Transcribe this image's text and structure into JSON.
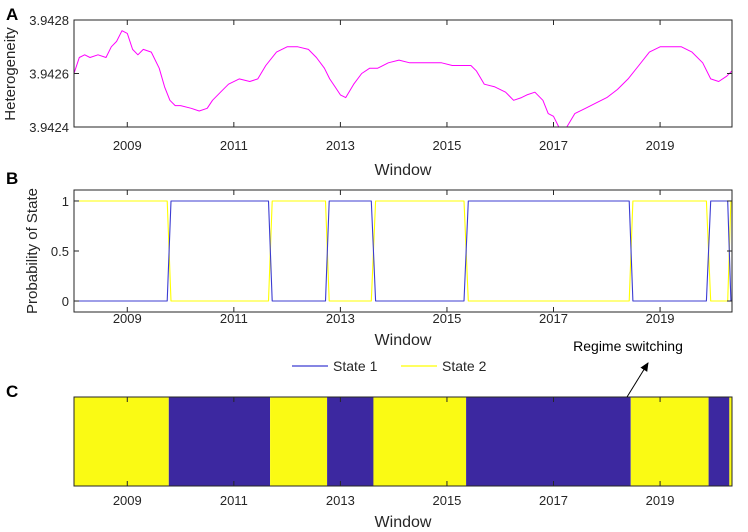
{
  "chart_data": [
    {
      "panel": "A",
      "type": "line",
      "xlabel": "Window",
      "ylabel": "Heterogeneity",
      "xlim": [
        2008,
        2020.35
      ],
      "ylim": [
        3.9424,
        3.9428
      ],
      "xticks": [
        2009,
        2011,
        2013,
        2015,
        2017,
        2019
      ],
      "xtick_labels": [
        "2009",
        "2011",
        "2013",
        "2015",
        "2017",
        "2019"
      ],
      "yticks": [
        3.9424,
        3.9426,
        3.9428
      ],
      "ytick_labels": [
        "3.9424",
        "3.9426",
        "3.9428"
      ],
      "grid": false,
      "series": [
        {
          "color": "#ff00ff",
          "x": [
            2008.0,
            2008.1,
            2008.2,
            2008.3,
            2008.45,
            2008.6,
            2008.7,
            2008.8,
            2008.9,
            2009.0,
            2009.1,
            2009.2,
            2009.3,
            2009.45,
            2009.6,
            2009.7,
            2009.8,
            2009.9,
            2010.0,
            2010.2,
            2010.35,
            2010.5,
            2010.6,
            2010.75,
            2010.9,
            2011.1,
            2011.3,
            2011.45,
            2011.6,
            2011.8,
            2012.0,
            2012.2,
            2012.4,
            2012.55,
            2012.7,
            2012.8,
            2012.9,
            2013.0,
            2013.1,
            2013.25,
            2013.4,
            2013.55,
            2013.7,
            2013.9,
            2014.1,
            2014.3,
            2014.5,
            2014.7,
            2014.9,
            2015.1,
            2015.3,
            2015.45,
            2015.55,
            2015.7,
            2015.9,
            2016.1,
            2016.25,
            2016.4,
            2016.5,
            2016.65,
            2016.8,
            2016.9,
            2017.0,
            2017.1,
            2017.25,
            2017.4,
            2017.6,
            2017.8,
            2018.0,
            2018.2,
            2018.4,
            2018.6,
            2018.8,
            2019.0,
            2019.2,
            2019.4,
            2019.6,
            2019.8,
            2019.95,
            2020.1,
            2020.25,
            2020.35
          ],
          "y": [
            3.9426,
            3.94266,
            3.94267,
            3.94266,
            3.94267,
            3.94266,
            3.9427,
            3.94272,
            3.94276,
            3.94275,
            3.94269,
            3.94267,
            3.94269,
            3.94268,
            3.94262,
            3.94255,
            3.9425,
            3.94248,
            3.94248,
            3.94247,
            3.94246,
            3.94247,
            3.9425,
            3.94253,
            3.94256,
            3.94258,
            3.94257,
            3.94258,
            3.94263,
            3.94268,
            3.9427,
            3.9427,
            3.94269,
            3.94266,
            3.94262,
            3.94258,
            3.94255,
            3.94252,
            3.94251,
            3.94256,
            3.9426,
            3.94262,
            3.94262,
            3.94264,
            3.94265,
            3.94264,
            3.94264,
            3.94264,
            3.94264,
            3.94263,
            3.94263,
            3.94263,
            3.94261,
            3.94256,
            3.94255,
            3.94253,
            3.9425,
            3.94251,
            3.94252,
            3.94253,
            3.9425,
            3.94245,
            3.94244,
            3.9424,
            3.9424,
            3.94245,
            3.94247,
            3.94249,
            3.94251,
            3.94254,
            3.94258,
            3.94263,
            3.94268,
            3.9427,
            3.9427,
            3.9427,
            3.94268,
            3.94264,
            3.94258,
            3.94257,
            3.94259,
            3.94261
          ]
        }
      ]
    },
    {
      "panel": "B",
      "type": "line",
      "xlabel": "Window",
      "ylabel": "Probability of State",
      "xlim": [
        2008,
        2020.35
      ],
      "ylim": [
        0,
        1
      ],
      "xticks": [
        2009,
        2011,
        2013,
        2015,
        2017,
        2019
      ],
      "xtick_labels": [
        "2009",
        "2011",
        "2013",
        "2015",
        "2017",
        "2019"
      ],
      "yticks": [
        0,
        0.5,
        1
      ],
      "ytick_labels": [
        "0",
        "0.5",
        "1"
      ],
      "grid": false,
      "legend_position": "bottom",
      "series": [
        {
          "name": "State 1",
          "color": "#3c3cd2",
          "x": [
            2008.0,
            2009.75,
            2009.82,
            2011.65,
            2011.72,
            2012.72,
            2012.79,
            2013.58,
            2013.66,
            2015.32,
            2015.4,
            2018.42,
            2018.49,
            2019.87,
            2019.95,
            2020.27,
            2020.33,
            2020.35
          ],
          "y": [
            0,
            0,
            1,
            1,
            0,
            0,
            1,
            1,
            0,
            0,
            1,
            1,
            0,
            0,
            1,
            1,
            0,
            0
          ]
        },
        {
          "name": "State 2",
          "color": "#ffff00",
          "x": [
            2008.0,
            2009.75,
            2009.82,
            2011.65,
            2011.72,
            2012.72,
            2012.79,
            2013.58,
            2013.66,
            2015.32,
            2015.4,
            2018.42,
            2018.49,
            2019.87,
            2019.95,
            2020.27,
            2020.33,
            2020.35
          ],
          "y": [
            1,
            1,
            0,
            0,
            1,
            1,
            0,
            0,
            1,
            1,
            0,
            0,
            1,
            1,
            0,
            0,
            1,
            1
          ]
        }
      ]
    },
    {
      "panel": "C",
      "type": "heatmap",
      "xlabel": "Window",
      "xlim": [
        2008,
        2020.35
      ],
      "xticks": [
        2009,
        2011,
        2013,
        2015,
        2017,
        2019
      ],
      "xtick_labels": [
        "2009",
        "2011",
        "2013",
        "2015",
        "2017",
        "2019"
      ],
      "annotation": "Regime switching",
      "annotation_target_x": 2018.45,
      "state_colors": {
        "1": "#3c28a0",
        "2": "#fafa14"
      },
      "segments": [
        {
          "start": 2008.0,
          "end": 2009.78,
          "state": 2
        },
        {
          "start": 2009.78,
          "end": 2011.68,
          "state": 1
        },
        {
          "start": 2011.68,
          "end": 2012.75,
          "state": 2
        },
        {
          "start": 2012.75,
          "end": 2013.62,
          "state": 1
        },
        {
          "start": 2013.62,
          "end": 2015.36,
          "state": 2
        },
        {
          "start": 2015.36,
          "end": 2018.45,
          "state": 1
        },
        {
          "start": 2018.45,
          "end": 2019.91,
          "state": 2
        },
        {
          "start": 2019.91,
          "end": 2020.3,
          "state": 1
        },
        {
          "start": 2020.3,
          "end": 2020.35,
          "state": 2
        }
      ]
    }
  ],
  "panel_labels": [
    "A",
    "B",
    "C"
  ]
}
